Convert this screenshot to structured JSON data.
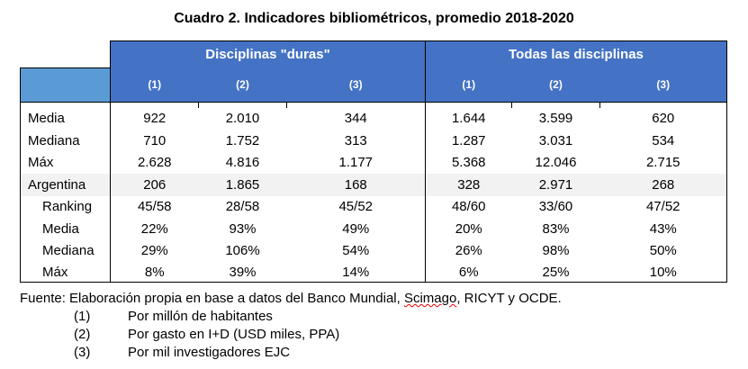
{
  "title": "Cuadro 2. Indicadores bibliométricos, promedio 2018-2020",
  "groups": [
    "Disciplinas \"duras\"",
    "Todas las disciplinas"
  ],
  "subcols": [
    "(1)",
    "(2)",
    "(3)",
    "(1)",
    "(2)",
    "(3)"
  ],
  "rows": [
    {
      "label": "Media",
      "values": [
        "922",
        "2.010",
        "344",
        "1.644",
        "3.599",
        "620"
      ]
    },
    {
      "label": "Mediana",
      "values": [
        "710",
        "1.752",
        "313",
        "1.287",
        "3.031",
        "534"
      ]
    },
    {
      "label": "Máx",
      "values": [
        "2.628",
        "4.816",
        "1.177",
        "5.368",
        "12.046",
        "2.715"
      ]
    },
    {
      "label": "Argentina",
      "values": [
        "206",
        "1.865",
        "168",
        "328",
        "2.971",
        "268"
      ]
    },
    {
      "label": "Ranking",
      "values": [
        "45/58",
        "28/58",
        "45/52",
        "48/60",
        "33/60",
        "47/52"
      ]
    },
    {
      "label": "Media",
      "values": [
        "22%",
        "93%",
        "49%",
        "20%",
        "83%",
        "43%"
      ]
    },
    {
      "label": "Mediana",
      "values": [
        "29%",
        "106%",
        "54%",
        "26%",
        "98%",
        "50%"
      ]
    },
    {
      "label": "Máx",
      "values": [
        "8%",
        "39%",
        "14%",
        "6%",
        "25%",
        "10%"
      ]
    }
  ],
  "footer": {
    "source_a": "Fuente: Elaboración propia en base a datos del Banco Mundial, ",
    "source_b": "Scimago",
    "source_c": ", RICYT y OCDE.",
    "notes": [
      {
        "n": "(1)",
        "t": "Por millón de habitantes"
      },
      {
        "n": "(2)",
        "t": "Por gasto en I+D (USD miles, PPA)"
      },
      {
        "n": "(3)",
        "t": "Por mil investigadores EJC"
      }
    ]
  }
}
